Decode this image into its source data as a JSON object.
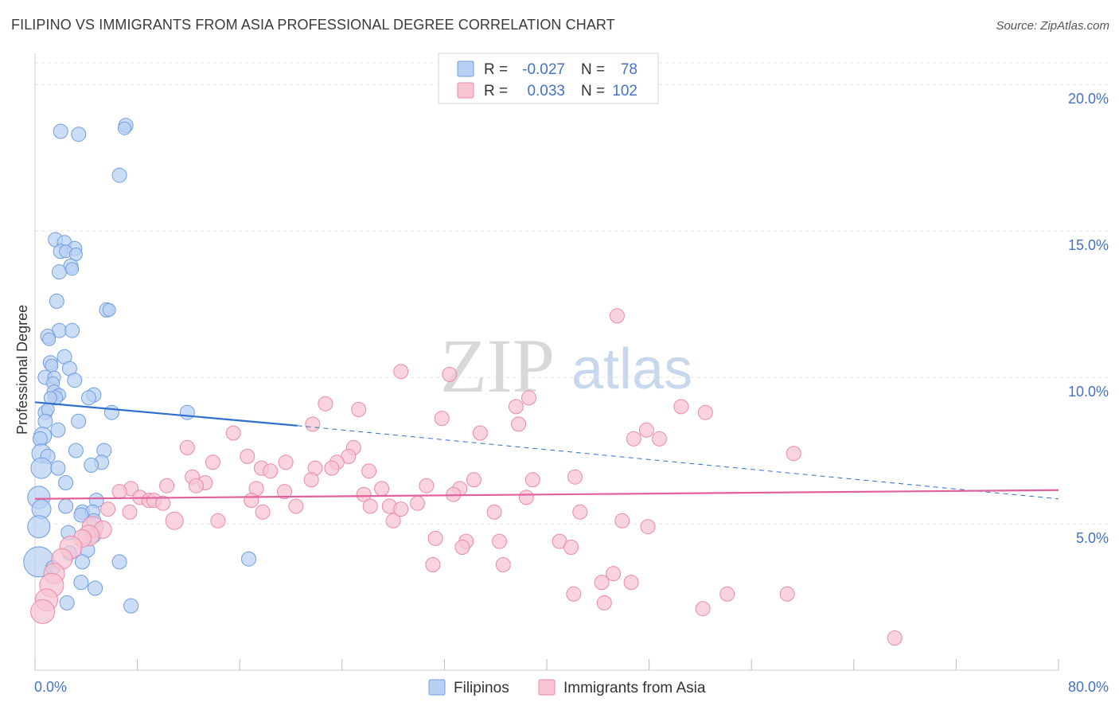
{
  "title": "FILIPINO VS IMMIGRANTS FROM ASIA PROFESSIONAL DEGREE CORRELATION CHART",
  "source": "Source: ZipAtlas.com",
  "watermark": {
    "zip": "ZIP",
    "atlas": "atlas"
  },
  "legend": {
    "r_label": "R =",
    "n_label": "N =",
    "series": [
      {
        "name": "Filipinos",
        "r": "-0.027",
        "n": "78",
        "fill": "#b8d0f3",
        "stroke": "#6f9de0"
      },
      {
        "name": "Immigrants from Asia",
        "r": "0.033",
        "n": "102",
        "fill": "#f7c4d2",
        "stroke": "#ea8aa7"
      }
    ]
  },
  "colors": {
    "blue_line": "#2f6fd0",
    "pink_line": "#e2609b",
    "tick_text": "#4472c4",
    "grid": "#e3e3e3"
  },
  "chart_data": {
    "type": "scatter",
    "title": "FILIPINO VS IMMIGRANTS FROM ASIA PROFESSIONAL DEGREE CORRELATION CHART",
    "xlabel": "",
    "ylabel": "Professional Degree",
    "xlim": [
      0,
      80
    ],
    "ylim": [
      0,
      20.9
    ],
    "x_tick_labels": [
      "0.0%",
      "80.0%"
    ],
    "y_ticks": [
      5,
      10,
      15,
      20
    ],
    "y_tick_labels": [
      "5.0%",
      "10.0%",
      "15.0%",
      "20.0%"
    ],
    "trend_lines": [
      {
        "series": "Filipinos",
        "x": [
          0,
          20.5
        ],
        "y": [
          9.15,
          8.35
        ],
        "dashed_x": [
          20.5,
          80
        ],
        "dashed_y": [
          8.35,
          5.85
        ]
      },
      {
        "series": "Immigrants from Asia",
        "x": [
          0,
          80
        ],
        "y": [
          5.85,
          6.15
        ]
      }
    ],
    "series": [
      {
        "name": "Filipinos",
        "points": [
          [
            2.0,
            18.4,
            9
          ],
          [
            3.4,
            18.3,
            9
          ],
          [
            7.1,
            18.6,
            9
          ],
          [
            7.0,
            18.5,
            8
          ],
          [
            6.6,
            16.9,
            9
          ],
          [
            1.6,
            14.7,
            9
          ],
          [
            2.3,
            14.6,
            9
          ],
          [
            2.0,
            14.3,
            9
          ],
          [
            3.1,
            14.4,
            9
          ],
          [
            2.4,
            14.3,
            8
          ],
          [
            3.2,
            14.2,
            8
          ],
          [
            2.8,
            13.8,
            9
          ],
          [
            1.9,
            13.6,
            9
          ],
          [
            2.9,
            13.7,
            8
          ],
          [
            1.7,
            12.6,
            9
          ],
          [
            5.6,
            12.3,
            9
          ],
          [
            5.8,
            12.3,
            8
          ],
          [
            1.9,
            11.6,
            9
          ],
          [
            2.9,
            11.6,
            9
          ],
          [
            1.0,
            11.4,
            9
          ],
          [
            1.1,
            11.3,
            8
          ],
          [
            2.3,
            10.7,
            9
          ],
          [
            1.2,
            10.5,
            9
          ],
          [
            1.3,
            10.4,
            8
          ],
          [
            2.7,
            10.3,
            9
          ],
          [
            0.8,
            10.0,
            9
          ],
          [
            1.5,
            10.0,
            8
          ],
          [
            3.1,
            9.9,
            9
          ],
          [
            1.4,
            9.8,
            8
          ],
          [
            1.5,
            9.5,
            9
          ],
          [
            1.9,
            9.4,
            8
          ],
          [
            1.6,
            9.3,
            9
          ],
          [
            1.2,
            9.3,
            8
          ],
          [
            4.6,
            9.4,
            9
          ],
          [
            4.2,
            9.3,
            9
          ],
          [
            0.8,
            8.8,
            9
          ],
          [
            1.0,
            8.9,
            8
          ],
          [
            6.0,
            8.8,
            9
          ],
          [
            11.9,
            8.8,
            9
          ],
          [
            0.8,
            8.5,
            9
          ],
          [
            3.4,
            8.5,
            9
          ],
          [
            1.8,
            8.2,
            9
          ],
          [
            0.6,
            8.0,
            11
          ],
          [
            0.4,
            7.9,
            9
          ],
          [
            3.2,
            7.5,
            9
          ],
          [
            5.4,
            7.5,
            9
          ],
          [
            0.5,
            7.4,
            12
          ],
          [
            1.0,
            7.3,
            9
          ],
          [
            5.2,
            7.1,
            9
          ],
          [
            4.4,
            7.0,
            9
          ],
          [
            0.5,
            6.9,
            13
          ],
          [
            1.8,
            6.9,
            9
          ],
          [
            2.4,
            6.4,
            9
          ],
          [
            0.3,
            5.9,
            14
          ],
          [
            4.8,
            5.8,
            9
          ],
          [
            2.4,
            5.6,
            9
          ],
          [
            0.5,
            5.5,
            12
          ],
          [
            3.7,
            5.4,
            9
          ],
          [
            4.5,
            5.4,
            9
          ],
          [
            3.6,
            5.3,
            9
          ],
          [
            4.6,
            5.1,
            9
          ],
          [
            0.3,
            4.9,
            14
          ],
          [
            2.6,
            4.7,
            9
          ],
          [
            4.6,
            4.6,
            9
          ],
          [
            4.1,
            4.1,
            9
          ],
          [
            2.7,
            4.0,
            9
          ],
          [
            0.3,
            3.7,
            19
          ],
          [
            3.7,
            3.7,
            9
          ],
          [
            6.6,
            3.7,
            9
          ],
          [
            16.7,
            3.8,
            9
          ],
          [
            1.4,
            3.5,
            9
          ],
          [
            3.6,
            3.0,
            9
          ],
          [
            4.7,
            2.8,
            9
          ],
          [
            2.5,
            2.3,
            9
          ],
          [
            7.5,
            2.2,
            9
          ]
        ]
      },
      {
        "name": "Immigrants from Asia",
        "points": [
          [
            45.5,
            12.1,
            9
          ],
          [
            28.6,
            10.2,
            9
          ],
          [
            32.4,
            10.1,
            9
          ],
          [
            22.7,
            9.1,
            9
          ],
          [
            25.3,
            8.9,
            9
          ],
          [
            38.6,
            9.3,
            9
          ],
          [
            37.6,
            9.0,
            9
          ],
          [
            50.5,
            9.0,
            9
          ],
          [
            52.4,
            8.8,
            9
          ],
          [
            31.8,
            8.6,
            9
          ],
          [
            21.7,
            8.4,
            9
          ],
          [
            37.8,
            8.4,
            9
          ],
          [
            15.5,
            8.1,
            9
          ],
          [
            34.8,
            8.1,
            9
          ],
          [
            47.8,
            8.2,
            9
          ],
          [
            46.8,
            7.9,
            9
          ],
          [
            48.8,
            7.9,
            9
          ],
          [
            59.3,
            7.4,
            9
          ],
          [
            11.9,
            7.6,
            9
          ],
          [
            24.9,
            7.6,
            9
          ],
          [
            16.6,
            7.3,
            9
          ],
          [
            24.5,
            7.3,
            9
          ],
          [
            13.9,
            7.1,
            9
          ],
          [
            23.6,
            7.1,
            9
          ],
          [
            19.6,
            7.1,
            9
          ],
          [
            17.7,
            6.9,
            9
          ],
          [
            18.4,
            6.8,
            9
          ],
          [
            21.9,
            6.9,
            9
          ],
          [
            23.2,
            6.9,
            9
          ],
          [
            26.1,
            6.8,
            9
          ],
          [
            12.3,
            6.6,
            9
          ],
          [
            21.6,
            6.5,
            9
          ],
          [
            13.3,
            6.4,
            9
          ],
          [
            34.3,
            6.5,
            9
          ],
          [
            38.9,
            6.5,
            9
          ],
          [
            42.2,
            6.6,
            9
          ],
          [
            7.5,
            6.2,
            9
          ],
          [
            6.6,
            6.1,
            9
          ],
          [
            10.3,
            6.3,
            9
          ],
          [
            12.6,
            6.3,
            9
          ],
          [
            17.3,
            6.2,
            9
          ],
          [
            19.5,
            6.1,
            9
          ],
          [
            27.1,
            6.2,
            9
          ],
          [
            30.6,
            6.3,
            9
          ],
          [
            33.2,
            6.2,
            9
          ],
          [
            25.7,
            6.0,
            9
          ],
          [
            16.9,
            5.8,
            9
          ],
          [
            32.7,
            6.0,
            9
          ],
          [
            38.4,
            5.9,
            9
          ],
          [
            8.2,
            5.9,
            9
          ],
          [
            8.9,
            5.8,
            9
          ],
          [
            9.3,
            5.8,
            9
          ],
          [
            10.0,
            5.7,
            9
          ],
          [
            5.7,
            5.5,
            9
          ],
          [
            7.4,
            5.4,
            9
          ],
          [
            17.8,
            5.4,
            9
          ],
          [
            20.4,
            5.6,
            9
          ],
          [
            26.2,
            5.6,
            9
          ],
          [
            27.7,
            5.6,
            9
          ],
          [
            28.6,
            5.5,
            9
          ],
          [
            29.9,
            5.7,
            9
          ],
          [
            35.9,
            5.4,
            9
          ],
          [
            42.6,
            5.4,
            9
          ],
          [
            10.9,
            5.1,
            11
          ],
          [
            14.3,
            5.1,
            9
          ],
          [
            28.0,
            5.1,
            9
          ],
          [
            45.9,
            5.1,
            9
          ],
          [
            47.9,
            4.9,
            9
          ],
          [
            4.5,
            4.9,
            13
          ],
          [
            5.3,
            4.8,
            11
          ],
          [
            4.2,
            4.6,
            13
          ],
          [
            3.7,
            4.5,
            11
          ],
          [
            2.8,
            4.2,
            14
          ],
          [
            2.1,
            3.8,
            13
          ],
          [
            31.3,
            4.5,
            9
          ],
          [
            33.7,
            4.4,
            9
          ],
          [
            36.3,
            4.4,
            9
          ],
          [
            33.4,
            4.2,
            9
          ],
          [
            41.0,
            4.4,
            9
          ],
          [
            41.9,
            4.2,
            9
          ],
          [
            31.1,
            3.6,
            9
          ],
          [
            36.6,
            3.6,
            9
          ],
          [
            1.5,
            3.3,
            13
          ],
          [
            1.3,
            2.9,
            15
          ],
          [
            0.9,
            2.4,
            14
          ],
          [
            0.6,
            2.0,
            15
          ],
          [
            45.2,
            3.3,
            9
          ],
          [
            44.3,
            3.0,
            9
          ],
          [
            46.6,
            3.0,
            9
          ],
          [
            52.2,
            2.1,
            9
          ],
          [
            54.1,
            2.6,
            9
          ],
          [
            42.1,
            2.6,
            9
          ],
          [
            44.5,
            2.3,
            9
          ],
          [
            58.8,
            2.6,
            9
          ],
          [
            67.2,
            1.1,
            9
          ]
        ]
      }
    ]
  }
}
